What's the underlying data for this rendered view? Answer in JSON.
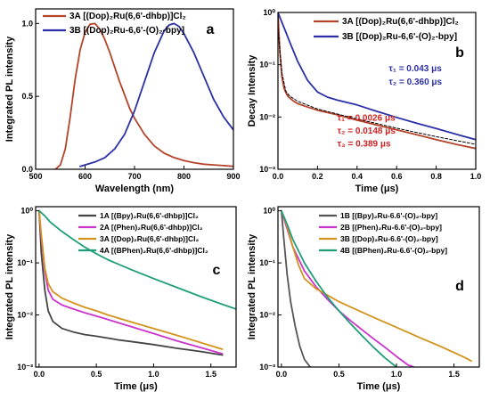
{
  "chart_data": [
    {
      "id": "a",
      "type": "line",
      "panel_label": "a",
      "xlabel": "Wavelength (nm)",
      "ylabel": "Integrated PL intensity",
      "xlim": [
        500,
        900
      ],
      "ylim": [
        0,
        1.1
      ],
      "yscale": "linear",
      "xticks": [
        500,
        600,
        700,
        800,
        900
      ],
      "yticks": [
        0.0,
        0.5,
        1.0
      ],
      "xtick_labels": [
        "500",
        "600",
        "700",
        "800",
        "900"
      ],
      "ytick_labels": [
        "0.0",
        "0.5",
        "1.0"
      ],
      "legend_position": "top-left",
      "series": [
        {
          "name": "3A [(Dop)₂Ru(6,6'-dhbp)]Cl₂",
          "color": "#b5432a",
          "x": [
            540,
            550,
            560,
            570,
            580,
            590,
            600,
            610,
            620,
            630,
            640,
            650,
            660,
            670,
            680,
            690,
            700,
            720,
            740,
            760,
            780,
            800,
            820,
            840,
            860,
            880,
            900
          ],
          "y": [
            0.0,
            0.03,
            0.14,
            0.36,
            0.62,
            0.82,
            0.94,
            0.995,
            1.0,
            0.96,
            0.89,
            0.8,
            0.7,
            0.6,
            0.51,
            0.42,
            0.35,
            0.24,
            0.16,
            0.11,
            0.08,
            0.06,
            0.045,
            0.035,
            0.03,
            0.025,
            0.02
          ]
        },
        {
          "name": "3B [(Dop)₂Ru-6,6'-(O)₂-bpy]",
          "color": "#2b2fa8",
          "x": [
            590,
            600,
            620,
            640,
            660,
            680,
            700,
            720,
            740,
            760,
            770,
            780,
            790,
            800,
            820,
            840,
            860,
            880,
            900
          ],
          "y": [
            0.02,
            0.03,
            0.05,
            0.08,
            0.14,
            0.24,
            0.4,
            0.6,
            0.8,
            0.95,
            0.99,
            1.0,
            0.98,
            0.93,
            0.8,
            0.64,
            0.48,
            0.36,
            0.27
          ]
        }
      ],
      "annotations": []
    },
    {
      "id": "b",
      "type": "line",
      "panel_label": "b",
      "xlabel": "Time (μs)",
      "ylabel": "Decay Intensity",
      "xlim": [
        0,
        1.0
      ],
      "ylim": [
        0.001,
        1
      ],
      "yscale": "log",
      "xticks": [
        0,
        0.2,
        0.4,
        0.6,
        0.8,
        1.0
      ],
      "yticks": [
        0.001,
        0.01,
        0.1,
        1
      ],
      "xtick_labels": [
        "0.0",
        "0.2",
        "0.4",
        "0.6",
        "0.8",
        "1.0"
      ],
      "ytick_labels": [
        "10⁻³",
        "10⁻²",
        "10⁻¹",
        "10⁰"
      ],
      "legend_position": "top-right",
      "series": [
        {
          "name": "3A [(Dop)₂Ru(6,6'-dhbp)]Cl₂",
          "color": "#b5432a",
          "x": [
            0,
            0.005,
            0.01,
            0.02,
            0.03,
            0.04,
            0.05,
            0.06,
            0.08,
            0.1,
            0.15,
            0.2,
            0.3,
            0.4,
            0.5,
            0.6,
            0.7,
            0.8,
            0.9,
            1.0
          ],
          "y": [
            1.0,
            0.4,
            0.17,
            0.06,
            0.036,
            0.029,
            0.025,
            0.023,
            0.02,
            0.018,
            0.0155,
            0.0135,
            0.011,
            0.0087,
            0.007,
            0.0057,
            0.0046,
            0.0037,
            0.003,
            0.0025
          ]
        },
        {
          "name": "3B [(Dop)₂Ru-6,6'-(O)₂-bpy]",
          "color": "#2b2fa8",
          "x": [
            0,
            0.02,
            0.04,
            0.06,
            0.08,
            0.1,
            0.15,
            0.2,
            0.25,
            0.3,
            0.4,
            0.5,
            0.6,
            0.7,
            0.8,
            0.9,
            1.0
          ],
          "y": [
            1.0,
            0.65,
            0.42,
            0.27,
            0.175,
            0.115,
            0.05,
            0.03,
            0.024,
            0.021,
            0.017,
            0.0128,
            0.0098,
            0.0076,
            0.006,
            0.0047,
            0.0037
          ]
        },
        {
          "name": "",
          "color": "#000000",
          "x": [
            0.0,
            0.02,
            0.04,
            0.06,
            0.1,
            0.2,
            0.4,
            0.6,
            0.8,
            1.0
          ],
          "y": [
            0.5,
            0.07,
            0.031,
            0.025,
            0.02,
            0.0142,
            0.0092,
            0.0061,
            0.0042,
            0.003
          ]
        }
      ],
      "annotations": [
        {
          "text": "τ₁ = 0.043 μs",
          "color": "#2b2fa8",
          "x": 0.56,
          "y": 0.075
        },
        {
          "text": "τ₂ = 0.360 μs",
          "color": "#2b2fa8",
          "x": 0.56,
          "y": 0.042
        },
        {
          "text": "τ₁ = 0.0026 μs",
          "color": "#d22222",
          "x": 0.3,
          "y": 0.0085
        },
        {
          "text": "τ₂ = 0.0148 μs",
          "color": "#d22222",
          "x": 0.3,
          "y": 0.0048
        },
        {
          "text": "τ₃ = 0.389 μs",
          "color": "#d22222",
          "x": 0.3,
          "y": 0.0027
        }
      ]
    },
    {
      "id": "c",
      "type": "line",
      "panel_label": "c",
      "xlabel": "Time (μs)",
      "ylabel": "Integrated PL intensity",
      "xlim": [
        -0.03,
        1.72
      ],
      "ylim": [
        0.001,
        1.2
      ],
      "yscale": "log",
      "xticks": [
        0.0,
        0.5,
        1.0,
        1.5
      ],
      "yticks": [
        0.001,
        0.01,
        0.1,
        1
      ],
      "xtick_labels": [
        "0.0",
        "0.5",
        "1.0",
        "1.5"
      ],
      "ytick_labels": [
        "10⁻³",
        "10⁻²",
        "10⁻¹",
        "10⁰"
      ],
      "legend_position": "top-right",
      "series": [
        {
          "name": "1A [(Bpy)₂Ru(6,6'-dhbp)]Cl₂",
          "color": "#444444",
          "x": [
            0,
            0.02,
            0.05,
            0.08,
            0.12,
            0.2,
            0.3,
            0.4,
            0.5,
            0.6,
            0.7,
            0.8,
            1.0,
            1.2,
            1.4,
            1.6
          ],
          "y": [
            1.0,
            0.15,
            0.03,
            0.012,
            0.0075,
            0.0055,
            0.0047,
            0.0042,
            0.0039,
            0.0036,
            0.0033,
            0.0031,
            0.0027,
            0.0023,
            0.002,
            0.0017
          ]
        },
        {
          "name": "2A [(Phen)₂Ru(6,6'-dhbp)]Cl₂",
          "color": "#cc33cc",
          "x": [
            0,
            0.02,
            0.05,
            0.08,
            0.12,
            0.2,
            0.3,
            0.4,
            0.5,
            0.6,
            0.7,
            0.8,
            1.0,
            1.2,
            1.4,
            1.6
          ],
          "y": [
            1.0,
            0.3,
            0.07,
            0.03,
            0.02,
            0.0155,
            0.013,
            0.011,
            0.0095,
            0.0082,
            0.007,
            0.006,
            0.0044,
            0.0032,
            0.0024,
            0.0018
          ]
        },
        {
          "name": "3A [(Dop)₂Ru(6,6'-dhbp)]Cl₂",
          "color": "#d4931c",
          "x": [
            0,
            0.02,
            0.05,
            0.08,
            0.12,
            0.2,
            0.3,
            0.4,
            0.5,
            0.6,
            0.7,
            0.8,
            1.0,
            1.2,
            1.4,
            1.6
          ],
          "y": [
            1.0,
            0.35,
            0.08,
            0.04,
            0.028,
            0.021,
            0.017,
            0.014,
            0.012,
            0.01,
            0.0086,
            0.0074,
            0.0055,
            0.0041,
            0.003,
            0.0022
          ]
        },
        {
          "name": "4A [(BPhen)₂Ru(6,6'-dhbp)]Cl₂",
          "color": "#1f9e7a",
          "x": [
            0,
            0.05,
            0.1,
            0.2,
            0.3,
            0.4,
            0.5,
            0.6,
            0.8,
            1.0,
            1.2,
            1.4,
            1.6,
            1.72
          ],
          "y": [
            1.0,
            0.8,
            0.6,
            0.4,
            0.28,
            0.2,
            0.15,
            0.115,
            0.075,
            0.05,
            0.034,
            0.023,
            0.016,
            0.013
          ]
        }
      ],
      "annotations": []
    },
    {
      "id": "d",
      "type": "line",
      "panel_label": "d",
      "xlabel": "Time (μs)",
      "ylabel": "Integrated PL intensity",
      "xlim": [
        -0.03,
        1.72
      ],
      "ylim": [
        0.001,
        1.2
      ],
      "yscale": "log",
      "xticks": [
        0.0,
        0.5,
        1.0,
        1.5
      ],
      "yticks": [
        0.001,
        0.01,
        0.1,
        1
      ],
      "xtick_labels": [
        "0.0",
        "0.5",
        "1.0",
        "1.5"
      ],
      "ytick_labels": [
        "10⁻³",
        "10⁻²",
        "10⁻¹",
        "10⁰"
      ],
      "legend_position": "top-right",
      "series": [
        {
          "name": "1B [(Bpy)₂Ru-6.6'-(O)₂-bpy]",
          "color": "#555555",
          "x": [
            0,
            0.02,
            0.05,
            0.08,
            0.12,
            0.16,
            0.2,
            0.25
          ],
          "y": [
            1.0,
            0.3,
            0.06,
            0.018,
            0.006,
            0.0025,
            0.0014,
            0.001
          ]
        },
        {
          "name": "2B [(Phen)₂Ru-6.6'-(O)₂-bpy]",
          "color": "#cc33cc",
          "x": [
            0,
            0.05,
            0.1,
            0.2,
            0.3,
            0.4,
            0.5,
            0.6,
            0.7,
            0.8,
            0.9,
            1.0,
            1.1,
            1.15
          ],
          "y": [
            1.0,
            0.45,
            0.2,
            0.07,
            0.035,
            0.02,
            0.012,
            0.0078,
            0.0052,
            0.0035,
            0.0024,
            0.0016,
            0.0011,
            0.001
          ]
        },
        {
          "name": "3B [(Dop)₂Ru-6.6'-(O)₂-bpy]",
          "color": "#d4931c",
          "x": [
            0,
            0.05,
            0.1,
            0.15,
            0.2,
            0.3,
            0.4,
            0.5,
            0.6,
            0.8,
            1.0,
            1.2,
            1.4,
            1.6,
            1.65
          ],
          "y": [
            1.0,
            0.5,
            0.2,
            0.09,
            0.05,
            0.032,
            0.024,
            0.018,
            0.0142,
            0.009,
            0.0058,
            0.0037,
            0.0024,
            0.0015,
            0.0013
          ]
        },
        {
          "name": "4B [(BPhen)₂Ru-6.6'-(O)₂-bpy]",
          "color": "#1f9e7a",
          "x": [
            0,
            0.05,
            0.1,
            0.2,
            0.3,
            0.4,
            0.5,
            0.6,
            0.7,
            0.8,
            0.9,
            1.0
          ],
          "y": [
            1.0,
            0.55,
            0.28,
            0.1,
            0.045,
            0.022,
            0.012,
            0.0068,
            0.004,
            0.0024,
            0.0015,
            0.001
          ]
        }
      ],
      "annotations": []
    }
  ]
}
